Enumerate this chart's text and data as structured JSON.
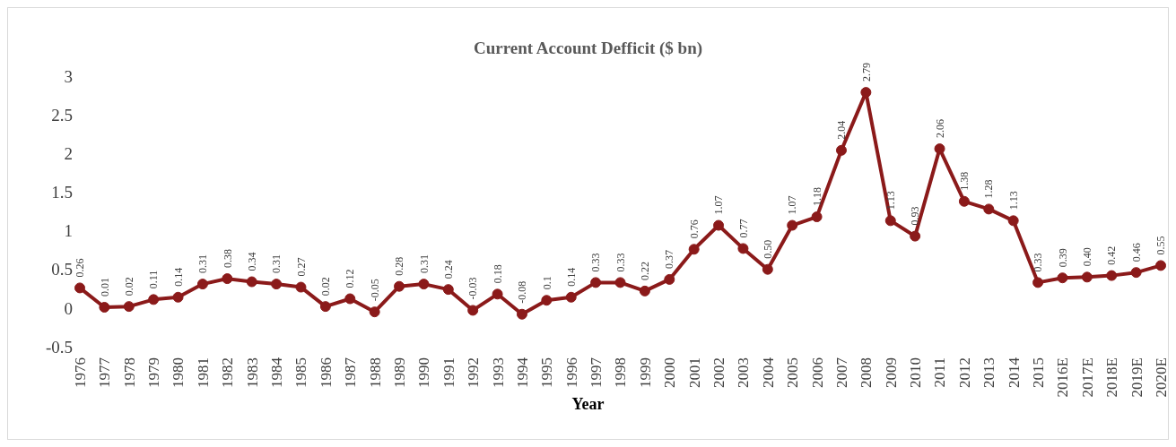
{
  "chart_data": {
    "type": "line",
    "title": "Current Account Defficit ($ bn)",
    "xlabel": "Year",
    "categories": [
      "1976",
      "1977",
      "1978",
      "1979",
      "1980",
      "1981",
      "1982",
      "1983",
      "1984",
      "1985",
      "1986",
      "1987",
      "1988",
      "1989",
      "1990",
      "1991",
      "1992",
      "1993",
      "1994",
      "1995",
      "1996",
      "1997",
      "1998",
      "1999",
      "2000",
      "2001",
      "2002",
      "2003",
      "2004",
      "2005",
      "2006",
      "2007",
      "2008",
      "2009",
      "2010",
      "2011",
      "2012",
      "2013",
      "2014",
      "2015",
      "2016E",
      "2017E",
      "2018E",
      "2019E",
      "2020E"
    ],
    "series": [
      {
        "color": "#8b1a1a",
        "values": [
          0.26,
          0.01,
          0.02,
          0.11,
          0.14,
          0.31,
          0.38,
          0.34,
          0.31,
          0.27,
          0.02,
          0.12,
          -0.05,
          0.28,
          0.31,
          0.24,
          -0.03,
          0.18,
          -0.08,
          0.1,
          0.14,
          0.33,
          0.33,
          0.22,
          0.37,
          0.76,
          1.07,
          0.77,
          0.5,
          1.07,
          1.18,
          2.04,
          2.79,
          1.13,
          0.93,
          2.06,
          1.38,
          1.28,
          1.13,
          0.33,
          0.39,
          0.4,
          0.42,
          0.46,
          0.55
        ],
        "value_labels": [
          "0.26",
          "0.01",
          "0.02",
          "0.11",
          "0.14",
          "0.31",
          "0.38",
          "0.34",
          "0.31",
          "0.27",
          "0.02",
          "0.12",
          "-0.05",
          "0.28",
          "0.31",
          "0.24",
          "-0.03",
          "0.18",
          "-0.08",
          "0.1",
          "0.14",
          "0.33",
          "0.33",
          "0.22",
          "0.37",
          "0.76",
          "1.07",
          "0.77",
          "0.50",
          "1.07",
          "1.18",
          "2.04",
          "2.79",
          "1.13",
          "0.93",
          "2.06",
          "1.38",
          "1.28",
          "1.13",
          "0.33",
          "0.39",
          "0.40",
          "0.42",
          "0.46",
          "0.55"
        ]
      }
    ],
    "ylim": [
      -0.5,
      3
    ],
    "yticks": [
      -0.5,
      0,
      0.5,
      1,
      1.5,
      2,
      2.5,
      3
    ],
    "marker": "circle",
    "line_style": "solid"
  }
}
